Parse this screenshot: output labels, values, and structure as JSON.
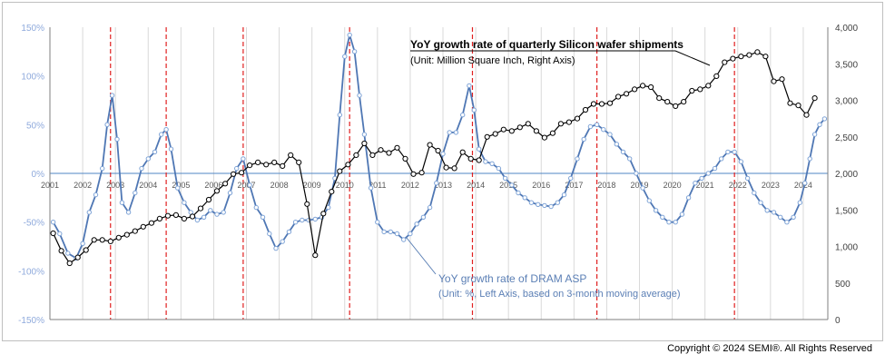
{
  "copyright": "Copyright © 2024 SEMI®. All Rights Reserved",
  "chart_data": {
    "type": "line",
    "x_range": [
      2001.0,
      2024.75
    ],
    "x_ticks": [
      2001,
      2002,
      2003,
      2004,
      2005,
      2006,
      2007,
      2008,
      2009,
      2010,
      2011,
      2012,
      2013,
      2014,
      2015,
      2016,
      2017,
      2018,
      2019,
      2020,
      2021,
      2022,
      2023,
      2024
    ],
    "x_tick_labels": [
      "2001",
      "2002",
      "2003",
      "2004",
      "2005",
      "2006",
      "2007",
      "2008",
      "2009",
      "2010",
      "2011",
      "2012",
      "2013",
      "2014",
      "2015",
      "2016",
      "2017",
      "2018",
      "2019",
      "2020",
      "2021",
      "2022",
      "2023",
      "2024"
    ],
    "y_left": {
      "range": [
        -150,
        150
      ],
      "ticks": [
        150,
        100,
        50,
        0,
        -50,
        -100,
        -150
      ],
      "tick_labels": [
        "150%",
        "100%",
        "50%",
        "0%",
        "-50%",
        "-100%",
        "-150%"
      ]
    },
    "y_right": {
      "range": [
        0,
        4000
      ],
      "ticks": [
        4000,
        3500,
        3000,
        2500,
        2000,
        1500,
        1000,
        500,
        0
      ],
      "tick_labels": [
        "4,000",
        "3,500",
        "3,000",
        "2,500",
        "2,000",
        "1,500",
        "1,000",
        "500",
        "0"
      ]
    },
    "gridlines": "vertical, at each year",
    "zero_line": true,
    "red_dashed_lines_x": [
      2002.85,
      2004.55,
      2006.9,
      2010.15,
      2013.9,
      2017.7,
      2021.9
    ],
    "series": [
      {
        "name": "YoY growth rate of DRAM ASP",
        "axis": "left",
        "color": "#4f77b4",
        "marker": "open-circle",
        "points": [
          [
            2001.1,
            -50
          ],
          [
            2001.3,
            -62
          ],
          [
            2001.55,
            -82
          ],
          [
            2001.8,
            -87
          ],
          [
            2002.0,
            -72
          ],
          [
            2002.2,
            -40
          ],
          [
            2002.4,
            -22
          ],
          [
            2002.6,
            5
          ],
          [
            2002.75,
            50
          ],
          [
            2002.9,
            80
          ],
          [
            2003.05,
            35
          ],
          [
            2003.2,
            -30
          ],
          [
            2003.4,
            -40
          ],
          [
            2003.6,
            -20
          ],
          [
            2003.8,
            5
          ],
          [
            2004.0,
            15
          ],
          [
            2004.2,
            22
          ],
          [
            2004.4,
            40
          ],
          [
            2004.55,
            45
          ],
          [
            2004.7,
            25
          ],
          [
            2004.9,
            -15
          ],
          [
            2005.1,
            -30
          ],
          [
            2005.3,
            -40
          ],
          [
            2005.5,
            -48
          ],
          [
            2005.7,
            -45
          ],
          [
            2005.9,
            -38
          ],
          [
            2006.1,
            -42
          ],
          [
            2006.3,
            -40
          ],
          [
            2006.5,
            -20
          ],
          [
            2006.7,
            5
          ],
          [
            2006.9,
            15
          ],
          [
            2007.1,
            -12
          ],
          [
            2007.3,
            -35
          ],
          [
            2007.5,
            -45
          ],
          [
            2007.7,
            -62
          ],
          [
            2007.9,
            -77
          ],
          [
            2008.1,
            -70
          ],
          [
            2008.3,
            -60
          ],
          [
            2008.5,
            -50
          ],
          [
            2008.7,
            -48
          ],
          [
            2008.9,
            -48
          ],
          [
            2009.1,
            -47
          ],
          [
            2009.3,
            -45
          ],
          [
            2009.5,
            -35
          ],
          [
            2009.7,
            -5
          ],
          [
            2009.85,
            60
          ],
          [
            2010.0,
            120
          ],
          [
            2010.15,
            142
          ],
          [
            2010.3,
            125
          ],
          [
            2010.45,
            80
          ],
          [
            2010.6,
            40
          ],
          [
            2010.8,
            -15
          ],
          [
            2011.0,
            -50
          ],
          [
            2011.2,
            -60
          ],
          [
            2011.4,
            -60
          ],
          [
            2011.6,
            -62
          ],
          [
            2011.8,
            -68
          ],
          [
            2012.0,
            -62
          ],
          [
            2012.2,
            -52
          ],
          [
            2012.4,
            -45
          ],
          [
            2012.6,
            -35
          ],
          [
            2012.8,
            -10
          ],
          [
            2013.0,
            20
          ],
          [
            2013.2,
            42
          ],
          [
            2013.4,
            42
          ],
          [
            2013.6,
            60
          ],
          [
            2013.8,
            90
          ],
          [
            2013.95,
            65
          ],
          [
            2014.1,
            25
          ],
          [
            2014.3,
            12
          ],
          [
            2014.5,
            10
          ],
          [
            2014.7,
            5
          ],
          [
            2014.9,
            -5
          ],
          [
            2015.1,
            -12
          ],
          [
            2015.3,
            -20
          ],
          [
            2015.5,
            -25
          ],
          [
            2015.7,
            -30
          ],
          [
            2015.9,
            -32
          ],
          [
            2016.1,
            -33
          ],
          [
            2016.3,
            -34
          ],
          [
            2016.5,
            -30
          ],
          [
            2016.7,
            -22
          ],
          [
            2016.9,
            -5
          ],
          [
            2017.1,
            15
          ],
          [
            2017.3,
            35
          ],
          [
            2017.5,
            48
          ],
          [
            2017.7,
            50
          ],
          [
            2017.9,
            45
          ],
          [
            2018.1,
            40
          ],
          [
            2018.3,
            30
          ],
          [
            2018.5,
            22
          ],
          [
            2018.7,
            15
          ],
          [
            2018.9,
            0
          ],
          [
            2019.1,
            -15
          ],
          [
            2019.3,
            -28
          ],
          [
            2019.5,
            -38
          ],
          [
            2019.7,
            -45
          ],
          [
            2019.9,
            -50
          ],
          [
            2020.1,
            -50
          ],
          [
            2020.3,
            -42
          ],
          [
            2020.5,
            -25
          ],
          [
            2020.7,
            -10
          ],
          [
            2020.9,
            -5
          ],
          [
            2021.1,
            0
          ],
          [
            2021.3,
            5
          ],
          [
            2021.5,
            15
          ],
          [
            2021.7,
            22
          ],
          [
            2021.9,
            22
          ],
          [
            2022.1,
            12
          ],
          [
            2022.3,
            -5
          ],
          [
            2022.5,
            -20
          ],
          [
            2022.7,
            -30
          ],
          [
            2022.9,
            -38
          ],
          [
            2023.1,
            -40
          ],
          [
            2023.3,
            -45
          ],
          [
            2023.5,
            -50
          ],
          [
            2023.7,
            -45
          ],
          [
            2023.9,
            -30
          ],
          [
            2024.05,
            -10
          ],
          [
            2024.2,
            15
          ],
          [
            2024.35,
            40
          ],
          [
            2024.5,
            50
          ],
          [
            2024.65,
            56
          ]
        ]
      },
      {
        "name": "YoY growth rate of quarterly Silicon wafer shipments",
        "axis": "right",
        "color": "#000000",
        "marker": "open-circle",
        "points": [
          [
            2001.1,
            1180
          ],
          [
            2001.35,
            940
          ],
          [
            2001.6,
            770
          ],
          [
            2001.85,
            850
          ],
          [
            2002.1,
            950
          ],
          [
            2002.35,
            1090
          ],
          [
            2002.6,
            1090
          ],
          [
            2002.85,
            1070
          ],
          [
            2003.1,
            1120
          ],
          [
            2003.35,
            1160
          ],
          [
            2003.6,
            1210
          ],
          [
            2003.85,
            1270
          ],
          [
            2004.1,
            1320
          ],
          [
            2004.35,
            1380
          ],
          [
            2004.6,
            1420
          ],
          [
            2004.85,
            1430
          ],
          [
            2005.1,
            1380
          ],
          [
            2005.35,
            1410
          ],
          [
            2005.6,
            1520
          ],
          [
            2005.85,
            1640
          ],
          [
            2006.1,
            1760
          ],
          [
            2006.35,
            1860
          ],
          [
            2006.6,
            1990
          ],
          [
            2006.85,
            2010
          ],
          [
            2007.1,
            2110
          ],
          [
            2007.35,
            2150
          ],
          [
            2007.6,
            2120
          ],
          [
            2007.85,
            2150
          ],
          [
            2008.1,
            2100
          ],
          [
            2008.35,
            2250
          ],
          [
            2008.6,
            2150
          ],
          [
            2008.85,
            1580
          ],
          [
            2009.1,
            880
          ],
          [
            2009.35,
            1450
          ],
          [
            2009.6,
            1750
          ],
          [
            2009.85,
            2030
          ],
          [
            2010.1,
            2120
          ],
          [
            2010.35,
            2250
          ],
          [
            2010.6,
            2410
          ],
          [
            2010.85,
            2250
          ],
          [
            2011.1,
            2320
          ],
          [
            2011.35,
            2280
          ],
          [
            2011.6,
            2350
          ],
          [
            2011.85,
            2200
          ],
          [
            2012.1,
            1990
          ],
          [
            2012.35,
            2010
          ],
          [
            2012.6,
            2390
          ],
          [
            2012.85,
            2310
          ],
          [
            2013.1,
            2080
          ],
          [
            2013.35,
            2070
          ],
          [
            2013.6,
            2290
          ],
          [
            2013.85,
            2200
          ],
          [
            2014.1,
            2180
          ],
          [
            2014.35,
            2500
          ],
          [
            2014.6,
            2540
          ],
          [
            2014.85,
            2600
          ],
          [
            2015.1,
            2580
          ],
          [
            2015.35,
            2630
          ],
          [
            2015.6,
            2680
          ],
          [
            2015.85,
            2580
          ],
          [
            2016.1,
            2490
          ],
          [
            2016.35,
            2550
          ],
          [
            2016.6,
            2680
          ],
          [
            2016.85,
            2700
          ],
          [
            2017.1,
            2750
          ],
          [
            2017.35,
            2870
          ],
          [
            2017.6,
            2950
          ],
          [
            2017.85,
            2950
          ],
          [
            2018.1,
            2960
          ],
          [
            2018.35,
            3050
          ],
          [
            2018.6,
            3090
          ],
          [
            2018.85,
            3150
          ],
          [
            2019.1,
            3200
          ],
          [
            2019.35,
            3180
          ],
          [
            2019.6,
            3030
          ],
          [
            2019.85,
            2980
          ],
          [
            2020.1,
            2920
          ],
          [
            2020.35,
            2980
          ],
          [
            2020.6,
            3130
          ],
          [
            2020.85,
            3150
          ],
          [
            2021.1,
            3200
          ],
          [
            2021.35,
            3330
          ],
          [
            2021.6,
            3520
          ],
          [
            2021.85,
            3570
          ],
          [
            2022.1,
            3600
          ],
          [
            2022.35,
            3620
          ],
          [
            2022.6,
            3660
          ],
          [
            2022.85,
            3600
          ],
          [
            2023.1,
            3260
          ],
          [
            2023.35,
            3290
          ],
          [
            2023.6,
            2960
          ],
          [
            2023.85,
            2930
          ],
          [
            2024.1,
            2800
          ],
          [
            2024.35,
            3030
          ]
        ]
      }
    ],
    "annotations": [
      {
        "text": "YoY growth rate of quarterly Silicon wafer shipments",
        "sub": "(Unit: Million Square Inch, Right Axis)",
        "points_to": [
          2021.3,
          3500
        ]
      },
      {
        "text": "YoY growth rate of DRAM ASP",
        "sub": "(Unit: %, Left Axis, based on 3-month moving average)",
        "points_to": [
          2012.2,
          -65
        ]
      }
    ]
  }
}
